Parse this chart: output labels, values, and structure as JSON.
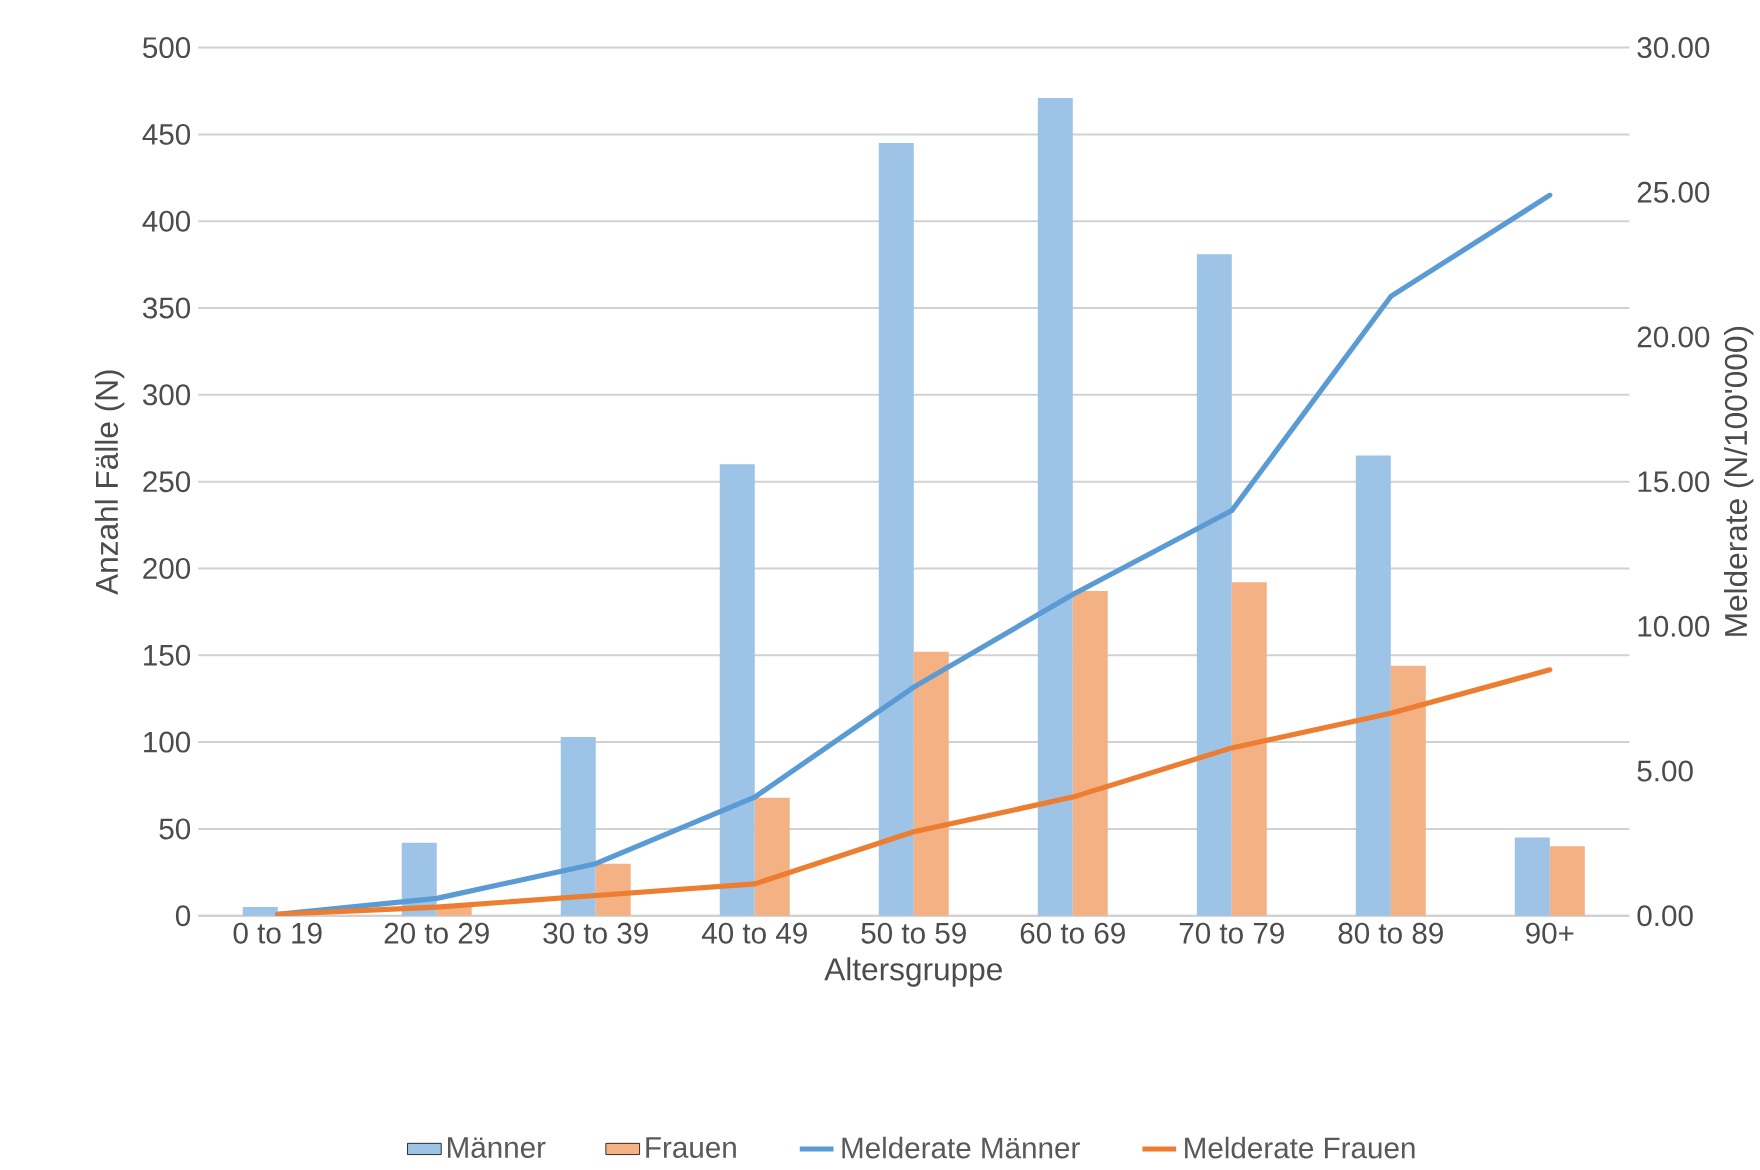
{
  "chart_data": {
    "type": "bar",
    "xlabel": "Altersgruppe",
    "ylabel": "Anzahl Fälle (N)",
    "y2label": "Melderate (N/100'000)",
    "categories": [
      "0 to 19",
      "20 to 29",
      "30 to 39",
      "40 to 49",
      "50 to 59",
      "60 to 69",
      "70 to 79",
      "80 to 89",
      "90+"
    ],
    "series": [
      {
        "name": "Männer",
        "color": "#9dc3e6",
        "values": [
          5,
          42,
          103,
          260,
          445,
          471,
          381,
          265,
          45
        ]
      },
      {
        "name": "Frauen",
        "color": "#f4b183",
        "values": [
          null,
          5,
          30,
          68,
          152,
          187,
          192,
          144,
          40
        ]
      },
      {
        "name": "Melderate Männer",
        "type": "line",
        "axis": "y2",
        "color": "#5b9bd5",
        "values": [
          0.05,
          0.6,
          1.8,
          4.1,
          7.9,
          11.1,
          14.0,
          21.4,
          24.9
        ]
      },
      {
        "name": "Melderate Frauen",
        "type": "line",
        "axis": "y2",
        "color": "#ed7d31",
        "values": [
          0.05,
          0.3,
          0.7,
          1.1,
          2.9,
          4.1,
          5.8,
          7.0,
          8.5
        ]
      }
    ],
    "ylim": [
      0,
      500
    ],
    "yticks": [
      0,
      50,
      100,
      150,
      200,
      250,
      300,
      350,
      400,
      450,
      500
    ],
    "y2lim": [
      0,
      30
    ],
    "y2ticks": [
      {
        "value": 0,
        "label": "0.00"
      },
      {
        "value": 5,
        "label": "5.00"
      },
      {
        "value": 10,
        "label": "10.00"
      },
      {
        "value": 15,
        "label": "15.00"
      },
      {
        "value": 20,
        "label": "20.00"
      },
      {
        "value": 25,
        "label": "25.00"
      },
      {
        "value": 30,
        "label": "30.00"
      }
    ],
    "grid": "y",
    "legend": "bottom"
  }
}
